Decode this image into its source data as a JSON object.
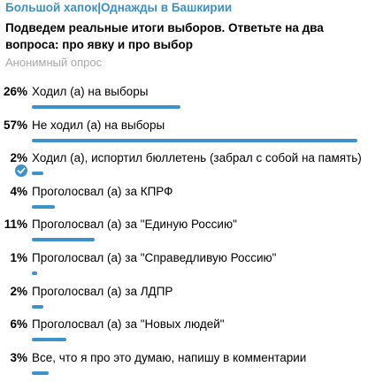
{
  "channel": {
    "name": "Большой хапок|Однажды в Башкирии"
  },
  "poll": {
    "question": "Подведем реальные итоги выборов. Ответьте на два вопроса: про явку и про выбор",
    "type": "Анонимный опрос",
    "bar_color": "#3e92cc",
    "options": [
      {
        "pct": "26%",
        "value": 26,
        "label": "Ходил (а) на выборы",
        "selected": false
      },
      {
        "pct": "57%",
        "value": 57,
        "label": "Не ходил (а) на выборы",
        "selected": false
      },
      {
        "pct": "2%",
        "value": 2,
        "label": "Ходил (а), испортил бюллетень (забрал с собой на память)",
        "selected": true
      },
      {
        "pct": "4%",
        "value": 4,
        "label": "Проголосвал (а) за КПРФ",
        "selected": false
      },
      {
        "pct": "11%",
        "value": 11,
        "label": "Проголосвал (а) за \"Единую Россию\"",
        "selected": false
      },
      {
        "pct": "1%",
        "value": 1,
        "label": "Проголосвал (а) за \"Справедливую Россию\"",
        "selected": false
      },
      {
        "pct": "2%",
        "value": 2,
        "label": "Проголосвал (а) за ЛДПР",
        "selected": false
      },
      {
        "pct": "6%",
        "value": 6,
        "label": "Проголосвал (а) за \"Новых людей\"",
        "selected": false
      },
      {
        "pct": "3%",
        "value": 3,
        "label": "Все, что я про это думаю, напишу в комментарии",
        "selected": false
      }
    ]
  }
}
